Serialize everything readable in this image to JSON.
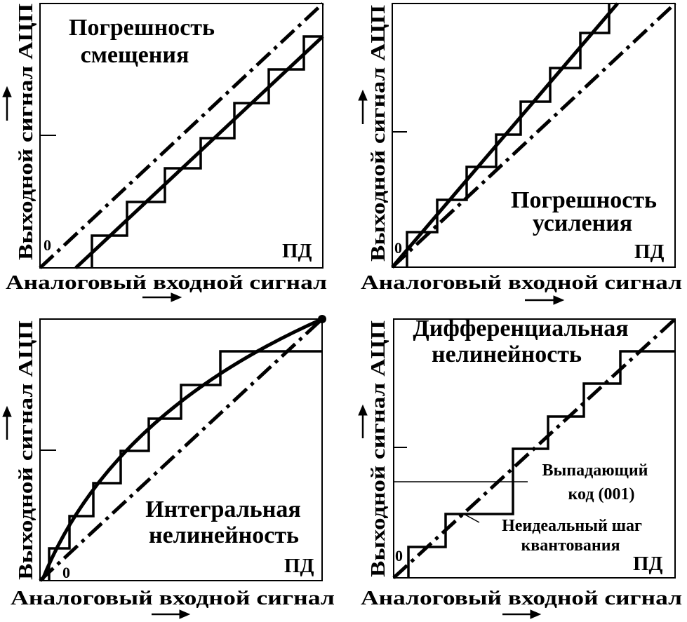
{
  "panels": [
    {
      "title_lines": [
        "Погрешность",
        "смещения"
      ],
      "xlabel": "Аналоговый входной сигнал",
      "ylabel": "Выходной сигнал АЦП",
      "origin": "0",
      "fullscale": "ПД"
    },
    {
      "title_lines": [
        "Погрешность",
        "усиления"
      ],
      "xlabel": "Аналоговый входной сигнал",
      "ylabel": "Выходной сигнал АЦП",
      "origin": "0",
      "fullscale": "ПД"
    },
    {
      "title_lines": [
        "Интегральная",
        "нелинейность"
      ],
      "xlabel": "Аналоговый входной сигнал",
      "ylabel": "Выходной сигнал АЦП",
      "origin": "0",
      "fullscale": "ПД"
    },
    {
      "title_lines": [
        "Дифференциальная",
        "нелинейность"
      ],
      "xlabel": "Аналоговый входной сигнал",
      "ylabel": "Выходной сигнал АЦП",
      "origin": "0",
      "fullscale": "ПД",
      "annotations": {
        "missing_code_lines": [
          "Выпадающий",
          "код (001)"
        ],
        "nonideal_step_lines": [
          "Неидеальный шаг",
          "квантования"
        ]
      }
    }
  ]
}
